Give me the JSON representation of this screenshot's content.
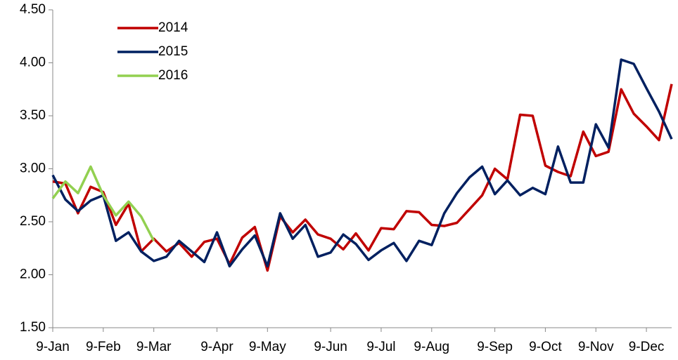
{
  "chart_data": {
    "type": "line",
    "categories": [
      "9-Jan",
      null,
      null,
      null,
      "9-Feb",
      null,
      null,
      null,
      "9-Mar",
      null,
      null,
      null,
      null,
      "9-Apr",
      null,
      null,
      null,
      "9-May",
      null,
      null,
      null,
      null,
      "9-Jun",
      null,
      null,
      null,
      "9-Jul",
      null,
      null,
      null,
      "9-Aug",
      null,
      null,
      null,
      null,
      "9-Sep",
      null,
      null,
      null,
      "9-Oct",
      null,
      null,
      null,
      "9-Nov",
      null,
      null,
      null,
      "9-Dec",
      null,
      null
    ],
    "series": [
      {
        "name": "2014",
        "color": "#c00000",
        "values": [
          2.88,
          2.86,
          2.58,
          2.83,
          2.78,
          2.47,
          2.67,
          2.22,
          2.34,
          2.22,
          2.3,
          2.17,
          2.31,
          2.34,
          2.1,
          2.35,
          2.45,
          2.04,
          2.55,
          2.4,
          2.52,
          2.38,
          2.34,
          2.24,
          2.39,
          2.23,
          2.44,
          2.43,
          2.6,
          2.59,
          2.47,
          2.46,
          2.49,
          2.62,
          2.75,
          3.0,
          2.9,
          3.51,
          3.5,
          3.03,
          2.97,
          2.93,
          3.35,
          3.12,
          3.16,
          3.75,
          3.52,
          3.4,
          3.27,
          3.8
        ]
      },
      {
        "name": "2015",
        "color": "#002060",
        "values": [
          2.94,
          2.71,
          2.6,
          2.7,
          2.75,
          2.32,
          2.4,
          2.22,
          2.13,
          2.17,
          2.32,
          2.22,
          2.12,
          2.4,
          2.08,
          2.24,
          2.37,
          2.08,
          2.58,
          2.34,
          2.47,
          2.17,
          2.21,
          2.38,
          2.29,
          2.14,
          2.23,
          2.3,
          2.13,
          2.32,
          2.28,
          2.58,
          2.77,
          2.92,
          3.02,
          2.76,
          2.89,
          2.75,
          2.82,
          2.76,
          3.21,
          2.87,
          2.87,
          3.42,
          3.2,
          4.03,
          3.99,
          3.76,
          3.54,
          3.28
        ]
      },
      {
        "name": "2016",
        "color": "#92d050",
        "values": [
          2.72,
          2.88,
          2.77,
          3.02,
          2.75,
          2.56,
          2.69,
          2.55,
          2.32,
          null,
          null,
          null,
          null,
          null,
          null,
          null,
          null,
          null,
          null,
          null,
          null,
          null,
          null,
          null,
          null,
          null,
          null,
          null,
          null,
          null,
          null,
          null,
          null,
          null,
          null,
          null,
          null,
          null,
          null,
          null,
          null,
          null,
          null,
          null,
          null,
          null,
          null,
          null,
          null,
          null
        ]
      }
    ],
    "ylim": [
      1.5,
      4.5
    ],
    "yticks": [
      {
        "value": 1.5,
        "label": "1.50"
      },
      {
        "value": 2,
        "label": "2.00"
      },
      {
        "value": 2.5,
        "label": "2.50"
      },
      {
        "value": 3,
        "label": "3.00"
      },
      {
        "value": 3.5,
        "label": "3.50"
      },
      {
        "value": 4,
        "label": "4.00"
      },
      {
        "value": 4.5,
        "label": "4.50"
      }
    ],
    "grid": false,
    "legend": "upper left"
  }
}
